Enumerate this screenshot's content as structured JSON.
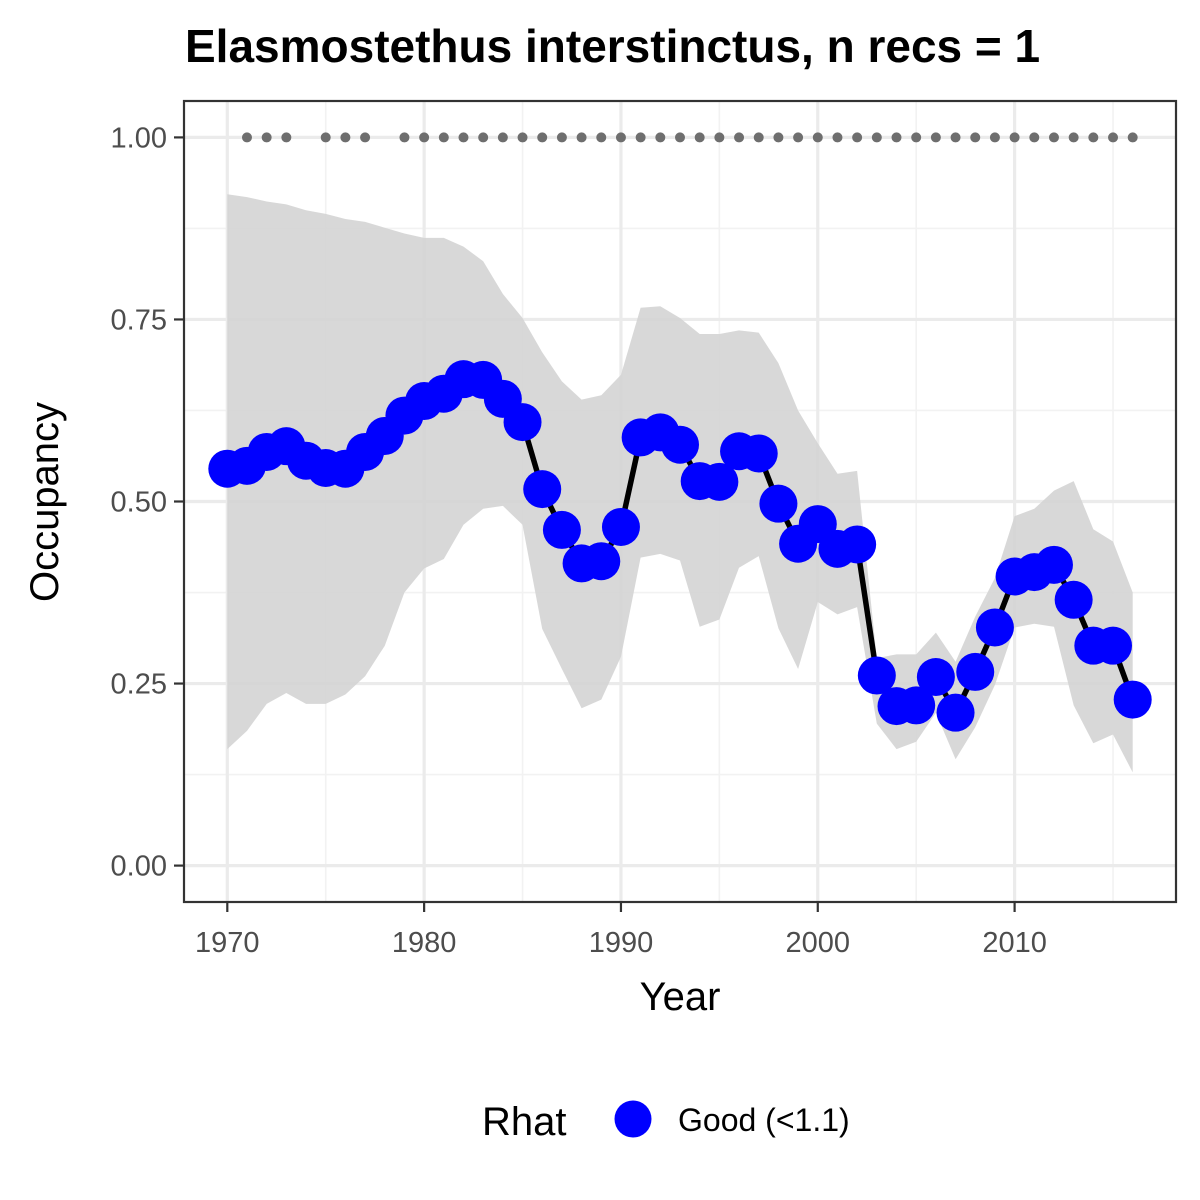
{
  "chart_data": {
    "type": "line",
    "title": "Elasmostethus interstinctus, n recs = 1",
    "xlabel": "Year",
    "ylabel": "Occupancy",
    "xlim": [
      1967.8,
      2018.2
    ],
    "ylim": [
      -0.05,
      1.05
    ],
    "x_ticks": [
      1970,
      1980,
      1990,
      2000,
      2010
    ],
    "x_tick_labels": [
      "1970",
      "1980",
      "1990",
      "2000",
      "2010"
    ],
    "x_minor_ticks": [
      1975,
      1985,
      1995,
      2005,
      2015
    ],
    "y_ticks": [
      0,
      0.25,
      0.5,
      0.75,
      1
    ],
    "y_tick_labels": [
      "0.00",
      "0.25",
      "0.50",
      "0.75",
      "1.00"
    ],
    "y_minor_ticks": [
      0.125,
      0.375,
      0.625,
      0.875
    ],
    "grid": true,
    "series": [
      {
        "name": "Good (<1.1)",
        "color": "#0000ff",
        "line_color": "#000000",
        "x": [
          1970,
          1971,
          1972,
          1973,
          1974,
          1975,
          1976,
          1977,
          1978,
          1979,
          1980,
          1981,
          1982,
          1983,
          1984,
          1985,
          1986,
          1987,
          1988,
          1989,
          1990,
          1991,
          1992,
          1993,
          1994,
          1995,
          1996,
          1997,
          1998,
          1999,
          2000,
          2001,
          2002,
          2003,
          2004,
          2005,
          2006,
          2007,
          2008,
          2009,
          2010,
          2011,
          2012,
          2013,
          2014,
          2015,
          2016
        ],
        "values": [
          0.545,
          0.549,
          0.568,
          0.576,
          0.556,
          0.546,
          0.545,
          0.568,
          0.59,
          0.618,
          0.638,
          0.648,
          0.668,
          0.667,
          0.641,
          0.609,
          0.517,
          0.461,
          0.415,
          0.418,
          0.465,
          0.588,
          0.595,
          0.578,
          0.528,
          0.527,
          0.569,
          0.566,
          0.497,
          0.442,
          0.469,
          0.435,
          0.441,
          0.261,
          0.219,
          0.22,
          0.259,
          0.21,
          0.266,
          0.327,
          0.397,
          0.403,
          0.413,
          0.365,
          0.302,
          0.302,
          0.228
        ],
        "lower": [
          0.16,
          0.185,
          0.222,
          0.237,
          0.222,
          0.222,
          0.235,
          0.26,
          0.302,
          0.375,
          0.408,
          0.421,
          0.468,
          0.49,
          0.494,
          0.468,
          0.325,
          0.27,
          0.216,
          0.228,
          0.287,
          0.423,
          0.428,
          0.419,
          0.328,
          0.338,
          0.409,
          0.425,
          0.326,
          0.27,
          0.362,
          0.345,
          0.355,
          0.195,
          0.16,
          0.17,
          0.21,
          0.146,
          0.19,
          0.248,
          0.327,
          0.332,
          0.328,
          0.22,
          0.168,
          0.18,
          0.128
        ],
        "upper": [
          0.922,
          0.918,
          0.912,
          0.908,
          0.9,
          0.895,
          0.888,
          0.884,
          0.876,
          0.868,
          0.862,
          0.862,
          0.85,
          0.83,
          0.785,
          0.752,
          0.705,
          0.665,
          0.64,
          0.646,
          0.674,
          0.766,
          0.768,
          0.752,
          0.73,
          0.73,
          0.735,
          0.732,
          0.69,
          0.625,
          0.58,
          0.538,
          0.542,
          0.285,
          0.29,
          0.29,
          0.32,
          0.28,
          0.342,
          0.395,
          0.48,
          0.49,
          0.515,
          0.528,
          0.462,
          0.445,
          0.375
        ]
      }
    ],
    "ribbon_color": "#d4d4d4",
    "data_years": [
      1971,
      1972,
      1973,
      1975,
      1976,
      1977,
      1979,
      1980,
      1981,
      1982,
      1983,
      1984,
      1985,
      1986,
      1987,
      1988,
      1989,
      1990,
      1991,
      1992,
      1993,
      1994,
      1995,
      1996,
      1997,
      1998,
      1999,
      2000,
      2001,
      2002,
      2003,
      2004,
      2005,
      2006,
      2007,
      2008,
      2009,
      2010,
      2011,
      2012,
      2013,
      2014,
      2015,
      2016
    ],
    "data_years_y": 1,
    "data_years_color": "#6e6e6e",
    "legend": {
      "title": "Rhat",
      "position": "bottom",
      "items": [
        {
          "label": "Good (<1.1)",
          "color": "#0000ff"
        }
      ]
    }
  }
}
